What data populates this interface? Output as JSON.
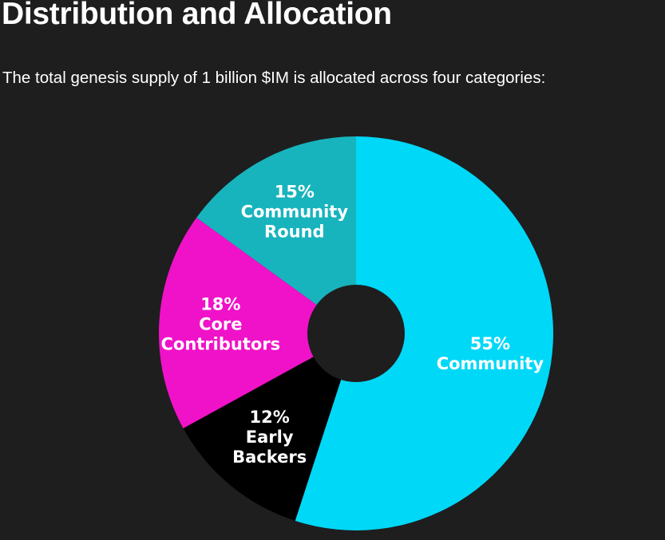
{
  "header": {
    "title": "Distribution and Allocation",
    "intro": "The total genesis supply of 1 billion $IM is allocated across four categories:"
  },
  "chart_data": {
    "type": "pie",
    "donut": true,
    "slices": [
      {
        "name": "Community",
        "value": 55,
        "percent_label": "55%",
        "label_lines": [
          "55%",
          "Community"
        ],
        "color": "#00d8f8"
      },
      {
        "name": "Early Backers",
        "value": 12,
        "percent_label": "12%",
        "label_lines": [
          "12%",
          "Early",
          "Backers"
        ],
        "color": "#000000"
      },
      {
        "name": "Core Contributors",
        "value": 18,
        "percent_label": "18%",
        "label_lines": [
          "18%",
          "Core",
          "Contributors"
        ],
        "color": "#f012c8"
      },
      {
        "name": "Community Round",
        "value": 15,
        "percent_label": "15%",
        "label_lines": [
          "15%",
          "Community",
          "Round"
        ],
        "color": "#17b4bd"
      }
    ],
    "start_angle": "12 o'clock",
    "direction": "clockwise",
    "legend": "none"
  }
}
